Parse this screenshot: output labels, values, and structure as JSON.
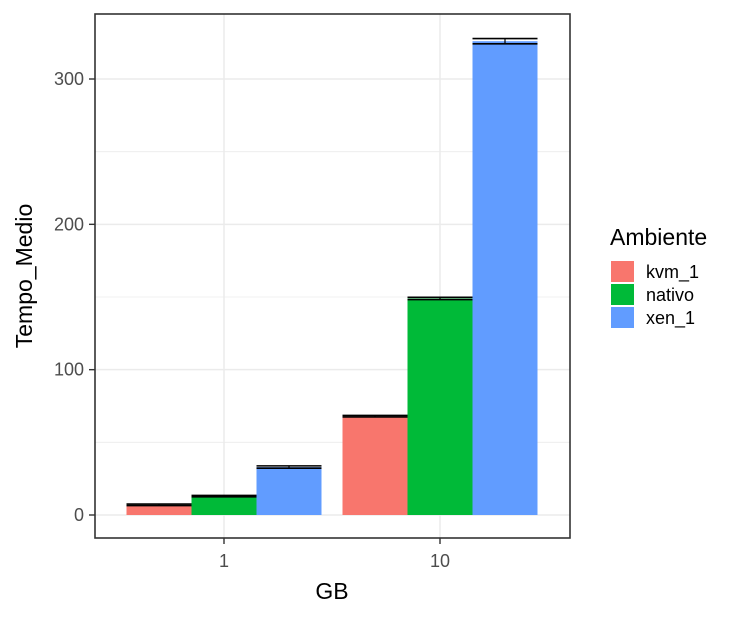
{
  "chart_data": {
    "type": "bar",
    "xlabel": "GB",
    "ylabel": "Tempo_Medio",
    "categories": [
      "1",
      "10"
    ],
    "ylim": [
      -15,
      345
    ],
    "yticks": [
      0,
      100,
      200,
      300
    ],
    "yticks_labels": [
      "0",
      "100",
      "200",
      "300"
    ],
    "grid": true,
    "legend": {
      "title": "Ambiente",
      "position": "right"
    },
    "series": [
      {
        "name": "kvm_1",
        "color": "#F8766D",
        "values": [
          7,
          68
        ],
        "error": [
          0.5,
          0.5
        ]
      },
      {
        "name": "nativo",
        "color": "#00BA38",
        "values": [
          13,
          149
        ],
        "error": [
          0.5,
          0.8
        ]
      },
      {
        "name": "xen_1",
        "color": "#619CFF",
        "values": [
          33,
          326
        ],
        "error": [
          0.8,
          1.8
        ]
      }
    ]
  }
}
